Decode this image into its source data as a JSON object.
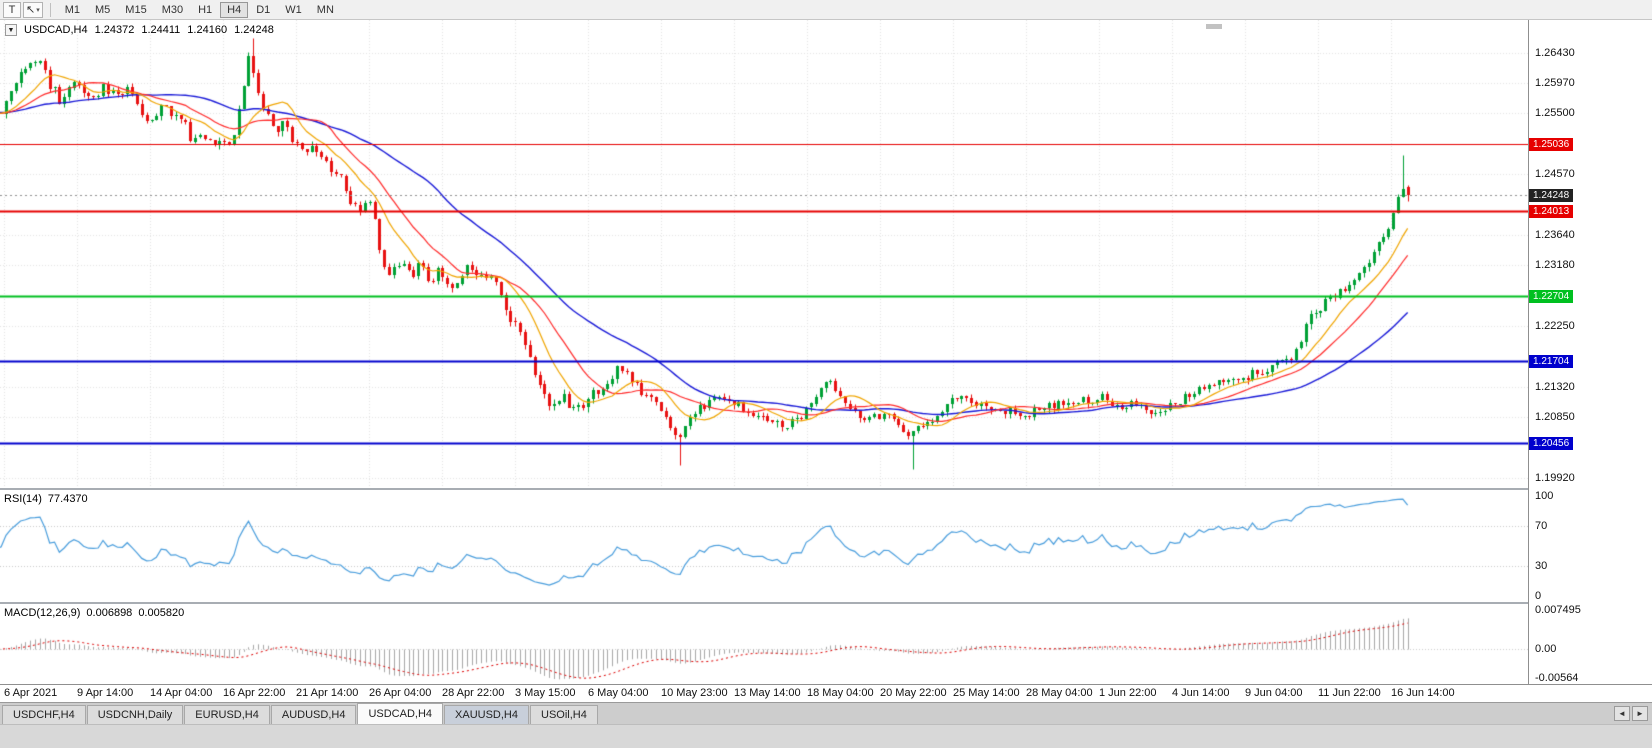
{
  "toolbar": {
    "tool_text_label": "T",
    "pointer_tool_icon": "cursor-icon",
    "timeframes": [
      "M1",
      "M5",
      "M15",
      "M30",
      "H1",
      "H4",
      "D1",
      "W1",
      "MN"
    ],
    "active_timeframe": "H4"
  },
  "chart_header": {
    "symbol": "USDCAD,H4",
    "open": "1.24372",
    "high": "1.24411",
    "low": "1.24160",
    "close": "1.24248"
  },
  "price_scale": {
    "ticks": [
      "1.26430",
      "1.25970",
      "1.25500",
      "1.24570",
      "1.23640",
      "1.23180",
      "1.22250",
      "1.21320",
      "1.20850",
      "1.19920"
    ],
    "current_price": "1.24248"
  },
  "levels": [
    {
      "label": "1.25036",
      "value": 1.25036,
      "color": "#e60000",
      "width": 1
    },
    {
      "label": "1.24013",
      "value": 1.24013,
      "color": "#e60000",
      "width": 2
    },
    {
      "label": "1.22704",
      "value": 1.22704,
      "color": "#00c020",
      "width": 2
    },
    {
      "label": "1.21704",
      "value": 1.21704,
      "color": "#0000cd",
      "width": 2
    },
    {
      "label": "1.20456",
      "value": 1.20456,
      "color": "#0000cd",
      "width": 2
    }
  ],
  "rsi": {
    "name": "RSI(14)",
    "value": "77.4370",
    "scale": [
      "100",
      "70",
      "30",
      "0"
    ],
    "levels": [
      70,
      30
    ]
  },
  "macd": {
    "name": "MACD(12,26,9)",
    "value1": "0.006898",
    "value2": "0.005820",
    "scale": [
      "0.007495",
      "0.00",
      "-0.00564"
    ],
    "range": {
      "max": 0.007495,
      "min": -0.00564
    }
  },
  "time_axis": [
    "6 Apr 2021",
    "9 Apr 14:00",
    "14 Apr 04:00",
    "16 Apr 22:00",
    "21 Apr 14:00",
    "26 Apr 04:00",
    "28 Apr 22:00",
    "3 May 15:00",
    "6 May 04:00",
    "10 May 23:00",
    "13 May 14:00",
    "18 May 04:00",
    "20 May 22:00",
    "25 May 14:00",
    "28 May 04:00",
    "1 Jun 22:00",
    "4 Jun 14:00",
    "9 Jun 04:00",
    "11 Jun 22:00",
    "16 Jun 14:00"
  ],
  "tabs": [
    {
      "label": "USDCHF,H4",
      "state": ""
    },
    {
      "label": "USDCNH,Daily",
      "state": ""
    },
    {
      "label": "EURUSD,H4",
      "state": ""
    },
    {
      "label": "AUDUSD,H4",
      "state": ""
    },
    {
      "label": "USDCAD,H4",
      "state": "active"
    },
    {
      "label": "XAUUSD,H4",
      "state": "highlighted"
    },
    {
      "label": "USOil,H4",
      "state": ""
    }
  ],
  "tab_arrows": {
    "left": "◄",
    "right": "►"
  },
  "colors": {
    "up_candle": "#00a135",
    "down_candle": "#e81212",
    "ma_fast": "#f0a500",
    "ma_mid": "#ff2a2a",
    "ma_slow": "#1a1ad8",
    "rsi_line": "#4a9edd",
    "macd_hist": "#a8a8a8",
    "macd_signal": "#dd0000",
    "current_badge": "#222222",
    "grid": "#e3e3e3"
  },
  "chart_data": {
    "type": "candlestick",
    "symbol": "USDCAD",
    "timeframe": "H4",
    "visible_range": {
      "price_top": 1.2693,
      "price_bottom": 1.19767,
      "start": "6 Apr 2021",
      "end": "16 Jun 2021"
    },
    "bar_count": 290,
    "noise": 0.0016,
    "wick": 0.0007,
    "last_bar_ohlc": [
      1.24372,
      1.24411,
      1.2416,
      1.24248
    ],
    "price_path": [
      [
        0,
        1.2552
      ],
      [
        3,
        1.261
      ],
      [
        7,
        1.2636
      ],
      [
        10,
        1.259
      ],
      [
        12,
        1.2568
      ],
      [
        15,
        1.2598
      ],
      [
        18,
        1.2576
      ],
      [
        21,
        1.259
      ],
      [
        24,
        1.2578
      ],
      [
        26,
        1.2592
      ],
      [
        28,
        1.2552
      ],
      [
        31,
        1.2538
      ],
      [
        33,
        1.256
      ],
      [
        35,
        1.2546
      ],
      [
        37,
        1.254
      ],
      [
        39,
        1.251
      ],
      [
        41,
        1.2516
      ],
      [
        43,
        1.2506
      ],
      [
        45,
        1.2516
      ],
      [
        47,
        1.2505
      ],
      [
        49,
        1.256
      ],
      [
        51,
        1.265
      ],
      [
        52,
        1.2606
      ],
      [
        54,
        1.255
      ],
      [
        56,
        1.2524
      ],
      [
        58,
        1.2532
      ],
      [
        60,
        1.2505
      ],
      [
        62,
        1.2494
      ],
      [
        64,
        1.2502
      ],
      [
        66,
        1.2478
      ],
      [
        68,
        1.2464
      ],
      [
        70,
        1.245
      ],
      [
        72,
        1.2412
      ],
      [
        74,
        1.2404
      ],
      [
        76,
        1.2412
      ],
      [
        77,
        1.2374
      ],
      [
        78,
        1.233
      ],
      [
        80,
        1.2307
      ],
      [
        82,
        1.2322
      ],
      [
        84,
        1.23
      ],
      [
        86,
        1.2316
      ],
      [
        88,
        1.2293
      ],
      [
        90,
        1.2308
      ],
      [
        92,
        1.2286
      ],
      [
        94,
        1.23
      ],
      [
        96,
        1.2316
      ],
      [
        98,
        1.2308
      ],
      [
        100,
        1.23
      ],
      [
        102,
        1.2285
      ],
      [
        104,
        1.2242
      ],
      [
        106,
        1.222
      ],
      [
        108,
        1.219
      ],
      [
        110,
        1.2145
      ],
      [
        112,
        1.2107
      ],
      [
        114,
        1.21
      ],
      [
        116,
        1.2116
      ],
      [
        118,
        1.2092
      ],
      [
        120,
        1.2108
      ],
      [
        122,
        1.2122
      ],
      [
        125,
        1.2138
      ],
      [
        127,
        1.2166
      ],
      [
        129,
        1.2144
      ],
      [
        131,
        1.213
      ],
      [
        133,
        1.2116
      ],
      [
        135,
        1.2107
      ],
      [
        137,
        1.2077
      ],
      [
        139,
        1.2055
      ],
      [
        141,
        1.207
      ],
      [
        143,
        1.2092
      ],
      [
        145,
        1.2107
      ],
      [
        147,
        1.2122
      ],
      [
        149,
        1.2115
      ],
      [
        151,
        1.2107
      ],
      [
        153,
        1.21
      ],
      [
        155,
        1.2092
      ],
      [
        157,
        1.2085
      ],
      [
        159,
        1.2077
      ],
      [
        161,
        1.207
      ],
      [
        163,
        1.2077
      ],
      [
        165,
        1.2085
      ],
      [
        168,
        1.2116
      ],
      [
        170,
        1.2138
      ],
      [
        172,
        1.2122
      ],
      [
        174,
        1.2107
      ],
      [
        176,
        1.2092
      ],
      [
        178,
        1.2085
      ],
      [
        180,
        1.2092
      ],
      [
        182,
        1.2085
      ],
      [
        184,
        1.2077
      ],
      [
        186,
        1.2055
      ],
      [
        187,
        1.2048
      ],
      [
        188,
        1.2063
      ],
      [
        190,
        1.2077
      ],
      [
        192,
        1.2085
      ],
      [
        194,
        1.21
      ],
      [
        196,
        1.2116
      ],
      [
        198,
        1.2122
      ],
      [
        200,
        1.2107
      ],
      [
        202,
        1.21
      ],
      [
        204,
        1.2092
      ],
      [
        206,
        1.21
      ],
      [
        209,
        1.2092
      ],
      [
        211,
        1.2085
      ],
      [
        213,
        1.2092
      ],
      [
        215,
        1.21
      ],
      [
        217,
        1.2107
      ],
      [
        219,
        1.21
      ],
      [
        221,
        1.2107
      ],
      [
        223,
        1.2116
      ],
      [
        225,
        1.2107
      ],
      [
        227,
        1.2116
      ],
      [
        229,
        1.2107
      ],
      [
        231,
        1.21
      ],
      [
        233,
        1.2107
      ],
      [
        235,
        1.21
      ],
      [
        238,
        1.2092
      ],
      [
        240,
        1.21
      ],
      [
        242,
        1.2107
      ],
      [
        244,
        1.2116
      ],
      [
        246,
        1.2122
      ],
      [
        248,
        1.213
      ],
      [
        250,
        1.2138
      ],
      [
        252,
        1.2145
      ],
      [
        254,
        1.2138
      ],
      [
        256,
        1.2145
      ],
      [
        258,
        1.2152
      ],
      [
        260,
        1.216
      ],
      [
        262,
        1.2167
      ],
      [
        264,
        1.2175
      ],
      [
        266,
        1.2182
      ],
      [
        268,
        1.2212
      ],
      [
        270,
        1.2241
      ],
      [
        272,
        1.2256
      ],
      [
        274,
        1.227
      ],
      [
        277,
        1.2286
      ],
      [
        279,
        1.23
      ],
      [
        281,
        1.2316
      ],
      [
        283,
        1.2345
      ],
      [
        285,
        1.2368
      ],
      [
        286,
        1.2382
      ],
      [
        287,
        1.2405
      ],
      [
        288,
        1.2434
      ],
      [
        289,
        1.2425
      ]
    ],
    "wick_events": [
      {
        "bar": 51,
        "high": 1.2666
      },
      {
        "bar": 139,
        "low": 1.2012
      },
      {
        "bar": 187,
        "low": 1.2006
      },
      {
        "bar": 288,
        "high": 1.2486
      }
    ],
    "indicators": {
      "ma_fast_period": 10,
      "ma_mid_period": 18,
      "ma_slow_period": 40,
      "rsi": "RSI(14)",
      "macd": "MACD(12,26,9)"
    }
  }
}
